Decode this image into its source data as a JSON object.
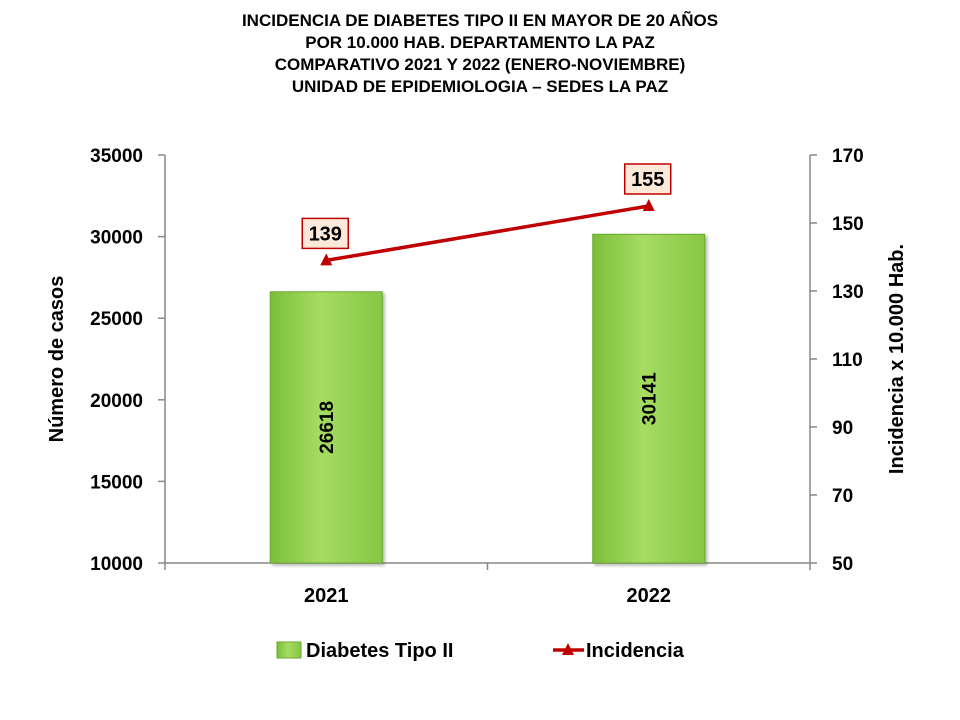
{
  "chart_data": {
    "type": "bar",
    "title_lines": [
      "INCIDENCIA DE DIABETES TIPO II  EN MAYOR DE 20 AÑOS",
      "POR 10.000 HAB. DEPARTAMENTO LA PAZ",
      "COMPARATIVO 2021 Y 2022 (ENERO-NOVIEMBRE)",
      "UNIDAD DE EPIDEMIOLOGIA – SEDES LA PAZ"
    ],
    "categories": [
      "2021",
      "2022"
    ],
    "series": [
      {
        "name": "Diabetes Tipo II",
        "type": "bar",
        "axis": "left",
        "values": [
          26618,
          30141
        ],
        "color": "#92d050"
      },
      {
        "name": "Incidencia",
        "type": "line",
        "axis": "right",
        "values": [
          139,
          155
        ],
        "color": "#c00000"
      }
    ],
    "ylabel": "Número de casos",
    "y2label": "Incidencia x 10.000 Hab.",
    "ylim": [
      10000,
      35000
    ],
    "y_ticks": [
      10000,
      15000,
      20000,
      25000,
      30000,
      35000
    ],
    "y2lim": [
      50,
      170
    ],
    "y2_ticks": [
      50,
      70,
      90,
      110,
      130,
      150,
      170
    ],
    "grid": false,
    "legend_position": "bottom"
  }
}
